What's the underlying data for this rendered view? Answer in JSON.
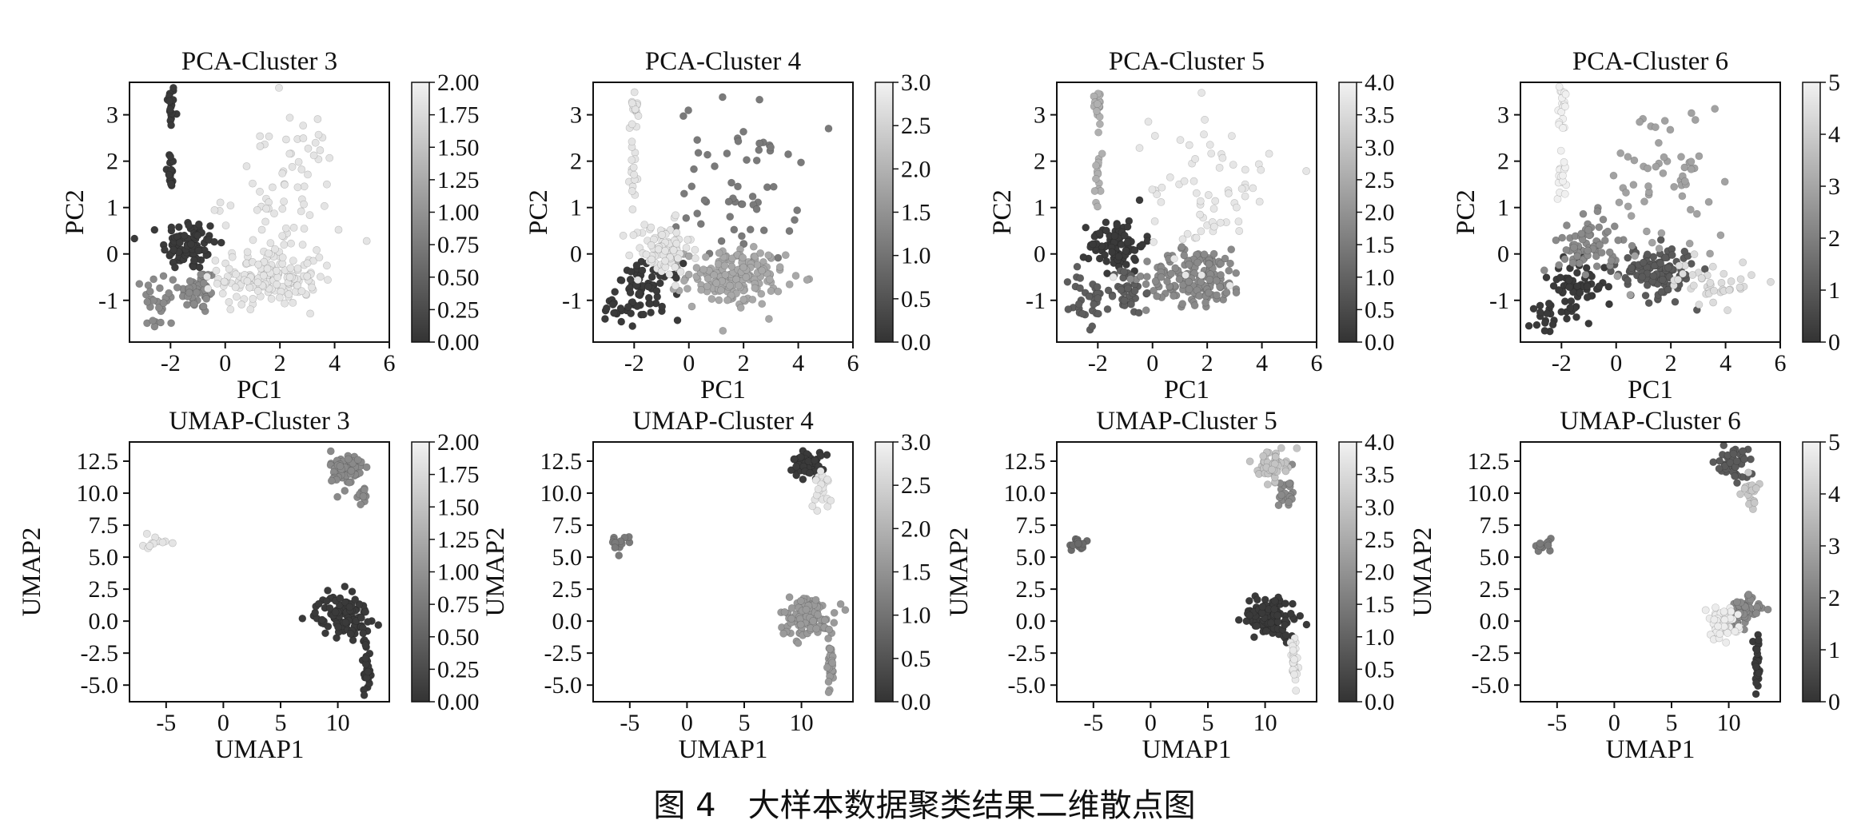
{
  "figure_caption": "图 4　大样本数据聚类结果二维散点图",
  "chart_data": [
    {
      "type": "scatter",
      "projection": "PCA",
      "title": "PCA-Cluster 3",
      "xlabel": "PC1",
      "ylabel": "PC2",
      "xlim": [
        -3.5,
        6.0
      ],
      "ylim": [
        -1.9,
        3.7
      ],
      "xticks": [
        -2,
        0,
        2,
        4,
        6
      ],
      "yticks": [
        -1,
        0,
        1,
        2,
        3
      ],
      "colorbar": {
        "min": 0,
        "max": 2,
        "ticks": [
          "0.00",
          "0.25",
          "0.50",
          "0.75",
          "1.00",
          "1.25",
          "1.50",
          "1.75",
          "2.00"
        ]
      },
      "clusters": [
        {
          "value": 0,
          "color": "#3a3a3a",
          "regions": [
            {
              "cx": -2.0,
              "cy": 3.2,
              "sx": 0.08,
              "sy": 0.25,
              "n": 18
            },
            {
              "cx": -2.0,
              "cy": 1.7,
              "sx": 0.08,
              "sy": 0.3,
              "n": 16
            },
            {
              "cx": -1.3,
              "cy": 0.2,
              "sx": 0.5,
              "sy": 0.28,
              "n": 85
            }
          ]
        },
        {
          "value": 1,
          "color": "#8a8a8a",
          "regions": [
            {
              "cx": -1.0,
              "cy": -0.8,
              "sx": 0.35,
              "sy": 0.25,
              "n": 45
            },
            {
              "cx": -2.4,
              "cy": -1.0,
              "sx": 0.3,
              "sy": 0.35,
              "n": 30
            }
          ]
        },
        {
          "value": 2,
          "color": "#e4e4e4",
          "regions": [
            {
              "cx": 1.6,
              "cy": -0.5,
              "sx": 0.9,
              "sy": 0.3,
              "n": 170
            },
            {
              "cx": 2.1,
              "cy": 1.3,
              "sx": 1.1,
              "sy": 0.9,
              "n": 70
            }
          ]
        }
      ]
    },
    {
      "type": "scatter",
      "projection": "PCA",
      "title": "PCA-Cluster 4",
      "xlabel": "PC1",
      "ylabel": "PC2",
      "xlim": [
        -3.5,
        6.0
      ],
      "ylim": [
        -1.9,
        3.7
      ],
      "xticks": [
        -2,
        0,
        2,
        4,
        6
      ],
      "yticks": [
        -1,
        0,
        1,
        2,
        3
      ],
      "colorbar": {
        "min": 0,
        "max": 3,
        "ticks": [
          "0.0",
          "0.5",
          "1.0",
          "1.5",
          "2.0",
          "2.5",
          "3.0"
        ]
      },
      "clusters": [
        {
          "value": 0,
          "color": "#3a3a3a",
          "regions": [
            {
              "cx": -1.5,
              "cy": -0.8,
              "sx": 0.6,
              "sy": 0.3,
              "n": 65
            },
            {
              "cx": -2.7,
              "cy": -1.2,
              "sx": 0.25,
              "sy": 0.3,
              "n": 15
            }
          ]
        },
        {
          "value": 1,
          "color": "#7a7a7a",
          "regions": [
            {
              "cx": 1.8,
              "cy": 1.5,
              "sx": 1.1,
              "sy": 0.9,
              "n": 60
            }
          ]
        },
        {
          "value": 2,
          "color": "#a8a8a8",
          "regions": [
            {
              "cx": 1.7,
              "cy": -0.5,
              "sx": 0.9,
              "sy": 0.3,
              "n": 170
            }
          ]
        },
        {
          "value": 3,
          "color": "#e4e4e4",
          "regions": [
            {
              "cx": -2.0,
              "cy": 3.2,
              "sx": 0.08,
              "sy": 0.25,
              "n": 18
            },
            {
              "cx": -2.0,
              "cy": 1.7,
              "sx": 0.08,
              "sy": 0.3,
              "n": 16
            },
            {
              "cx": -1.0,
              "cy": 0.1,
              "sx": 0.55,
              "sy": 0.3,
              "n": 80
            }
          ]
        }
      ]
    },
    {
      "type": "scatter",
      "projection": "PCA",
      "title": "PCA-Cluster 5",
      "xlabel": "PC1",
      "ylabel": "PC2",
      "xlim": [
        -3.5,
        6.0
      ],
      "ylim": [
        -1.9,
        3.7
      ],
      "xticks": [
        -2,
        0,
        2,
        4,
        6
      ],
      "yticks": [
        -1,
        0,
        1,
        2,
        3
      ],
      "colorbar": {
        "min": 0,
        "max": 4,
        "ticks": [
          "0.0",
          "0.5",
          "1.0",
          "1.5",
          "2.0",
          "2.5",
          "3.0",
          "3.5",
          "4.0"
        ]
      },
      "clusters": [
        {
          "value": 0,
          "color": "#3a3a3a",
          "regions": [
            {
              "cx": -1.3,
              "cy": 0.2,
              "sx": 0.5,
              "sy": 0.28,
              "n": 85
            }
          ]
        },
        {
          "value": 1,
          "color": "#5e5e5e",
          "regions": [
            {
              "cx": -1.0,
              "cy": -0.8,
              "sx": 0.35,
              "sy": 0.25,
              "n": 45
            },
            {
              "cx": -2.4,
              "cy": -1.0,
              "sx": 0.3,
              "sy": 0.35,
              "n": 30
            }
          ]
        },
        {
          "value": 2,
          "color": "#8a8a8a",
          "regions": [
            {
              "cx": 1.6,
              "cy": -0.5,
              "sx": 0.9,
              "sy": 0.3,
              "n": 170
            }
          ]
        },
        {
          "value": 3,
          "color": "#b0b0b0",
          "regions": [
            {
              "cx": -2.0,
              "cy": 3.2,
              "sx": 0.08,
              "sy": 0.25,
              "n": 18
            },
            {
              "cx": -2.0,
              "cy": 1.7,
              "sx": 0.08,
              "sy": 0.3,
              "n": 16
            }
          ]
        },
        {
          "value": 4,
          "color": "#e6e6e6",
          "regions": [
            {
              "cx": 2.1,
              "cy": 1.4,
              "sx": 1.1,
              "sy": 0.9,
              "n": 70
            }
          ]
        }
      ]
    },
    {
      "type": "scatter",
      "projection": "PCA",
      "title": "PCA-Cluster 6",
      "xlabel": "PC1",
      "ylabel": "PC2",
      "xlim": [
        -3.5,
        6.0
      ],
      "ylim": [
        -1.9,
        3.7
      ],
      "xticks": [
        -2,
        0,
        2,
        4,
        6
      ],
      "yticks": [
        -1,
        0,
        1,
        2,
        3
      ],
      "colorbar": {
        "min": 0,
        "max": 5,
        "ticks": [
          "0",
          "1",
          "2",
          "3",
          "4",
          "5"
        ]
      },
      "clusters": [
        {
          "value": 0,
          "color": "#3a3a3a",
          "regions": [
            {
              "cx": -1.4,
              "cy": -0.7,
              "sx": 0.5,
              "sy": 0.3,
              "n": 60
            },
            {
              "cx": -2.6,
              "cy": -1.2,
              "sx": 0.3,
              "sy": 0.3,
              "n": 20
            }
          ]
        },
        {
          "value": 1,
          "color": "#5a5a5a",
          "regions": [
            {
              "cx": 1.5,
              "cy": -0.4,
              "sx": 0.7,
              "sy": 0.28,
              "n": 120
            }
          ]
        },
        {
          "value": 2,
          "color": "#8a8a8a",
          "regions": [
            {
              "cx": -1.0,
              "cy": 0.2,
              "sx": 0.55,
              "sy": 0.3,
              "n": 70
            }
          ]
        },
        {
          "value": 3,
          "color": "#a2a2a2",
          "regions": [
            {
              "cx": 1.8,
              "cy": 1.5,
              "sx": 1.1,
              "sy": 0.9,
              "n": 60
            }
          ]
        },
        {
          "value": 4,
          "color": "#dcdcdc",
          "regions": [
            {
              "cx": 3.6,
              "cy": -0.6,
              "sx": 0.8,
              "sy": 0.25,
              "n": 40
            }
          ]
        },
        {
          "value": 5,
          "color": "#f0f0f0",
          "regions": [
            {
              "cx": -2.0,
              "cy": 3.2,
              "sx": 0.08,
              "sy": 0.25,
              "n": 18
            },
            {
              "cx": -2.0,
              "cy": 1.7,
              "sx": 0.08,
              "sy": 0.3,
              "n": 16
            }
          ]
        }
      ]
    },
    {
      "type": "scatter",
      "projection": "UMAP",
      "title": "UMAP-Cluster 3",
      "xlabel": "UMAP1",
      "ylabel": "UMAP2",
      "xlim": [
        -8.2,
        14.5
      ],
      "ylim": [
        -6.3,
        14.0
      ],
      "xticks": [
        -5,
        0,
        5,
        10
      ],
      "yticks": [
        -5.0,
        -2.5,
        0.0,
        2.5,
        5.0,
        7.5,
        10.0,
        12.5
      ],
      "colorbar": {
        "min": 0,
        "max": 2,
        "ticks": [
          "0.00",
          "0.25",
          "0.50",
          "0.75",
          "1.00",
          "1.25",
          "1.50",
          "1.75",
          "2.00"
        ]
      },
      "clusters": [
        {
          "value": 0,
          "color": "#3a3a3a",
          "regions": [
            {
              "cx": 10.5,
              "cy": 0.4,
              "sx": 1.2,
              "sy": 0.8,
              "n": 110
            },
            {
              "cx": 12.5,
              "cy": -3.5,
              "sx": 0.18,
              "sy": 1.2,
              "n": 30
            }
          ]
        },
        {
          "value": 1,
          "color": "#8a8a8a",
          "regions": [
            {
              "cx": 10.8,
              "cy": 11.8,
              "sx": 0.7,
              "sy": 0.8,
              "n": 70
            },
            {
              "cx": 12.2,
              "cy": 10.0,
              "sx": 0.25,
              "sy": 0.5,
              "n": 10
            }
          ]
        },
        {
          "value": 2,
          "color": "#e4e4e4",
          "regions": [
            {
              "cx": -6.0,
              "cy": 6.0,
              "sx": 0.6,
              "sy": 0.3,
              "n": 12
            }
          ]
        }
      ]
    },
    {
      "type": "scatter",
      "projection": "UMAP",
      "title": "UMAP-Cluster 4",
      "xlabel": "UMAP1",
      "ylabel": "UMAP2",
      "xlim": [
        -8.2,
        14.5
      ],
      "ylim": [
        -6.3,
        14.0
      ],
      "xticks": [
        -5,
        0,
        5,
        10
      ],
      "yticks": [
        -5.0,
        -2.5,
        0.0,
        2.5,
        5.0,
        7.5,
        10.0,
        12.5
      ],
      "colorbar": {
        "min": 0,
        "max": 3,
        "ticks": [
          "0.0",
          "0.5",
          "1.0",
          "1.5",
          "2.0",
          "2.5",
          "3.0"
        ]
      },
      "clusters": [
        {
          "value": 0,
          "color": "#3a3a3a",
          "regions": [
            {
              "cx": 10.5,
              "cy": 12.3,
              "sx": 0.6,
              "sy": 0.6,
              "n": 55
            }
          ]
        },
        {
          "value": 1,
          "color": "#7a7a7a",
          "regions": [
            {
              "cx": -6.0,
              "cy": 6.0,
              "sx": 0.6,
              "sy": 0.3,
              "n": 12
            }
          ]
        },
        {
          "value": 2,
          "color": "#9a9a9a",
          "regions": [
            {
              "cx": 10.5,
              "cy": 0.4,
              "sx": 1.2,
              "sy": 0.8,
              "n": 110
            },
            {
              "cx": 12.5,
              "cy": -3.5,
              "sx": 0.18,
              "sy": 1.2,
              "n": 30
            }
          ]
        },
        {
          "value": 3,
          "color": "#e4e4e4",
          "regions": [
            {
              "cx": 11.9,
              "cy": 10.2,
              "sx": 0.35,
              "sy": 0.7,
              "n": 20
            }
          ]
        }
      ]
    },
    {
      "type": "scatter",
      "projection": "UMAP",
      "title": "UMAP-Cluster 5",
      "xlabel": "UMAP1",
      "ylabel": "UMAP2",
      "xlim": [
        -8.2,
        14.5
      ],
      "ylim": [
        -6.3,
        14.0
      ],
      "xticks": [
        -5,
        0,
        5,
        10
      ],
      "yticks": [
        -5.0,
        -2.5,
        0.0,
        2.5,
        5.0,
        7.5,
        10.0,
        12.5
      ],
      "colorbar": {
        "min": 0,
        "max": 4,
        "ticks": [
          "0.0",
          "0.5",
          "1.0",
          "1.5",
          "2.0",
          "2.5",
          "3.0",
          "3.5",
          "4.0"
        ]
      },
      "clusters": [
        {
          "value": 0,
          "color": "#3a3a3a",
          "regions": [
            {
              "cx": 10.5,
              "cy": 0.4,
              "sx": 1.2,
              "sy": 0.8,
              "n": 110
            }
          ]
        },
        {
          "value": 1,
          "color": "#6a6a6a",
          "regions": [
            {
              "cx": -6.0,
              "cy": 6.0,
              "sx": 0.6,
              "sy": 0.3,
              "n": 12
            }
          ]
        },
        {
          "value": 2,
          "color": "#8a8a8a",
          "regions": [
            {
              "cx": 11.9,
              "cy": 10.2,
              "sx": 0.35,
              "sy": 0.7,
              "n": 20
            }
          ]
        },
        {
          "value": 3,
          "color": "#c4c4c4",
          "regions": [
            {
              "cx": 10.6,
              "cy": 12.2,
              "sx": 0.6,
              "sy": 0.6,
              "n": 55
            }
          ]
        },
        {
          "value": 4,
          "color": "#e8e8e8",
          "regions": [
            {
              "cx": 12.5,
              "cy": -3.5,
              "sx": 0.18,
              "sy": 1.2,
              "n": 30
            }
          ]
        }
      ]
    },
    {
      "type": "scatter",
      "projection": "UMAP",
      "title": "UMAP-Cluster 6",
      "xlabel": "UMAP1",
      "ylabel": "UMAP2",
      "xlim": [
        -8.2,
        14.5
      ],
      "ylim": [
        -6.3,
        14.0
      ],
      "xticks": [
        -5,
        0,
        5,
        10
      ],
      "yticks": [
        -5.0,
        -2.5,
        0.0,
        2.5,
        5.0,
        7.5,
        10.0,
        12.5
      ],
      "colorbar": {
        "min": 0,
        "max": 5,
        "ticks": [
          "0",
          "1",
          "2",
          "3",
          "4",
          "5"
        ]
      },
      "clusters": [
        {
          "value": 0,
          "color": "#3a3a3a",
          "regions": [
            {
              "cx": 12.5,
              "cy": -3.5,
              "sx": 0.18,
              "sy": 1.2,
              "n": 30
            }
          ]
        },
        {
          "value": 1,
          "color": "#5a5a5a",
          "regions": [
            {
              "cx": 10.5,
              "cy": 12.3,
              "sx": 0.6,
              "sy": 0.6,
              "n": 55
            }
          ]
        },
        {
          "value": 2,
          "color": "#8a8a8a",
          "regions": [
            {
              "cx": 11.3,
              "cy": 0.8,
              "sx": 0.7,
              "sy": 0.6,
              "n": 60
            }
          ]
        },
        {
          "value": 3,
          "color": "#7a7a7a",
          "regions": [
            {
              "cx": -6.0,
              "cy": 6.0,
              "sx": 0.6,
              "sy": 0.3,
              "n": 12
            }
          ]
        },
        {
          "value": 4,
          "color": "#c8c8c8",
          "regions": [
            {
              "cx": 11.9,
              "cy": 10.2,
              "sx": 0.35,
              "sy": 0.7,
              "n": 20
            }
          ]
        },
        {
          "value": 5,
          "color": "#ececec",
          "regions": [
            {
              "cx": 9.4,
              "cy": -0.2,
              "sx": 0.7,
              "sy": 0.6,
              "n": 55
            }
          ]
        }
      ]
    }
  ]
}
